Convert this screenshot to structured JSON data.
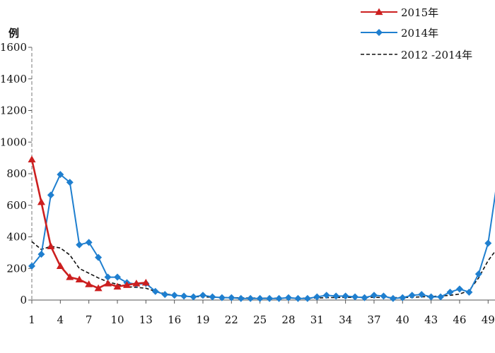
{
  "chart_data": {
    "type": "line",
    "ylabel": "例",
    "ylim": [
      0,
      1600
    ],
    "y_ticks": [
      "0",
      "200",
      "400",
      "600",
      "800",
      "1000",
      "1200",
      "1400",
      "1600"
    ],
    "x_ticks": [
      1,
      4,
      7,
      10,
      13,
      16,
      19,
      22,
      25,
      28,
      31,
      34,
      37,
      40,
      43,
      46,
      49
    ],
    "xlim": [
      1,
      49.5
    ],
    "grid": false,
    "legend_position": "top-right",
    "series": [
      {
        "name": "2015年",
        "color": "#cc1f1f",
        "line_style": "solid",
        "marker": "triangle",
        "x": [
          1,
          2,
          3,
          4,
          5,
          6,
          7,
          8,
          9,
          10,
          11,
          12,
          13
        ],
        "y": [
          890,
          620,
          340,
          215,
          145,
          130,
          100,
          75,
          105,
          85,
          95,
          105,
          110
        ]
      },
      {
        "name": "2014年",
        "color": "#1f7fcf",
        "line_style": "solid",
        "marker": "diamond",
        "x": [
          1,
          2,
          3,
          4,
          5,
          6,
          7,
          8,
          9,
          10,
          11,
          12,
          13,
          14,
          15,
          16,
          17,
          18,
          19,
          20,
          21,
          22,
          23,
          24,
          25,
          26,
          27,
          28,
          29,
          30,
          31,
          32,
          33,
          34,
          35,
          36,
          37,
          38,
          39,
          40,
          41,
          42,
          43,
          44,
          45,
          46,
          47,
          48,
          49,
          50
        ],
        "y": [
          215,
          290,
          665,
          795,
          745,
          350,
          365,
          270,
          145,
          145,
          110,
          100,
          105,
          55,
          35,
          30,
          25,
          20,
          30,
          20,
          15,
          15,
          10,
          10,
          10,
          10,
          10,
          15,
          10,
          10,
          20,
          30,
          25,
          25,
          20,
          15,
          30,
          25,
          10,
          15,
          30,
          35,
          20,
          20,
          50,
          70,
          50,
          165,
          360,
          770
        ]
      },
      {
        "name": "2012 -2014年",
        "color": "#111111",
        "line_style": "dashed",
        "marker": "none",
        "x": [
          1,
          2,
          3,
          4,
          5,
          6,
          7,
          8,
          9,
          10,
          11,
          12,
          13,
          14,
          15,
          16,
          17,
          18,
          19,
          20,
          21,
          22,
          23,
          24,
          25,
          26,
          27,
          28,
          29,
          30,
          31,
          32,
          33,
          34,
          35,
          36,
          37,
          38,
          39,
          40,
          41,
          42,
          43,
          44,
          45,
          46,
          47,
          48,
          49,
          50
        ],
        "y": [
          370,
          320,
          340,
          330,
          285,
          200,
          170,
          140,
          115,
          100,
          85,
          80,
          75,
          55,
          40,
          30,
          25,
          22,
          20,
          18,
          16,
          15,
          14,
          13,
          12,
          12,
          12,
          12,
          12,
          12,
          13,
          15,
          16,
          17,
          18,
          18,
          17,
          16,
          15,
          16,
          18,
          20,
          22,
          26,
          30,
          38,
          60,
          140,
          250,
          330
        ]
      }
    ]
  }
}
